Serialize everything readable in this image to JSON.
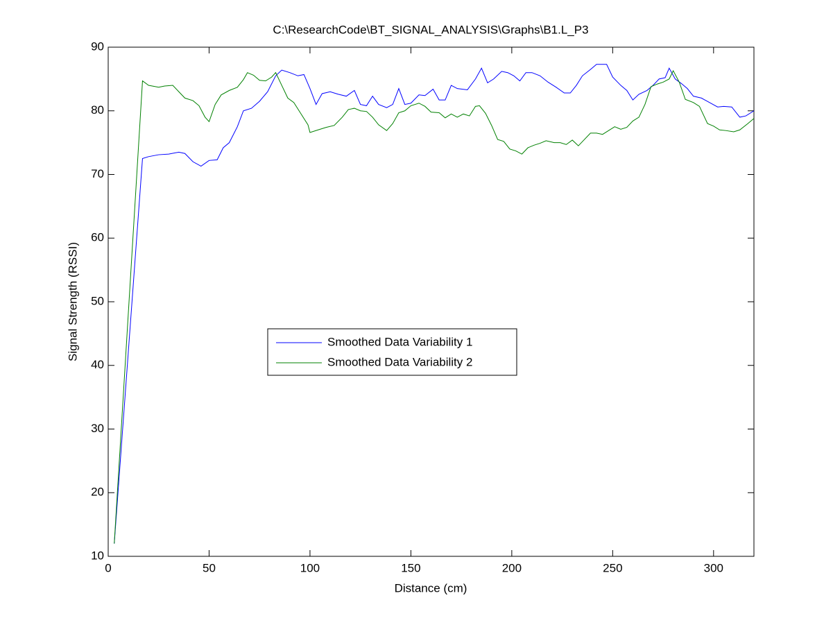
{
  "chart_data": {
    "type": "line",
    "title": "C:\\ResearchCode\\BT_SIGNAL_ANALYSIS\\Graphs\\B1.L_P3",
    "x_label": "Distance (cm)",
    "y_label": "Signal Strength (RSSI)",
    "xlim": [
      0,
      320
    ],
    "xticks": [
      0,
      50,
      100,
      150,
      200,
      250,
      300
    ],
    "ylim": [
      10,
      90
    ],
    "yticks": [
      10,
      20,
      30,
      40,
      50,
      60,
      70,
      80,
      90
    ],
    "grid": false,
    "legend_position": "center-left",
    "series": [
      {
        "name": "Smoothed Data Variability 1",
        "color": "#0000ff",
        "x": [
          3,
          17,
          20,
          25,
          30,
          35,
          38,
          42,
          46,
          50,
          54,
          57,
          60,
          64,
          67,
          71,
          75,
          79,
          83,
          86,
          90,
          94,
          97,
          100,
          103,
          106,
          110,
          114,
          118,
          122,
          125,
          128,
          131,
          134,
          138,
          141,
          144,
          147,
          150,
          154,
          157,
          161,
          164,
          167,
          170,
          173,
          178,
          182,
          185,
          188,
          191,
          195,
          198,
          201,
          204,
          207,
          210,
          214,
          218,
          222,
          226,
          229,
          232,
          235,
          239,
          242,
          247,
          250,
          254,
          257,
          260,
          263,
          267,
          270,
          273,
          276,
          278,
          281,
          284,
          287,
          290,
          294,
          298,
          302,
          305,
          309,
          313,
          316,
          320
        ],
        "values": [
          12,
          72.5,
          72.8,
          73.1,
          73.2,
          73.5,
          73.3,
          72,
          71.3,
          72.2,
          72.3,
          74.2,
          75,
          77.5,
          80,
          80.4,
          81.5,
          83,
          85.5,
          86.4,
          86,
          85.5,
          85.7,
          83.5,
          81,
          82.7,
          83,
          82.6,
          82.3,
          83.2,
          81,
          80.8,
          82.3,
          81,
          80.5,
          81,
          83.5,
          81,
          81.2,
          82.5,
          82.4,
          83.4,
          81.7,
          81.7,
          84,
          83.5,
          83.3,
          85,
          86.7,
          84.4,
          85,
          86.2,
          86,
          85.5,
          84.7,
          86,
          86,
          85.5,
          84.5,
          83.7,
          82.8,
          82.8,
          84,
          85.5,
          86.5,
          87.3,
          87.3,
          85.3,
          84,
          83.2,
          81.7,
          82.6,
          83.2,
          84,
          85,
          85.2,
          86.7,
          85,
          84.3,
          83.5,
          82.3,
          82,
          81.3,
          80.6,
          80.7,
          80.6,
          79,
          79.2,
          80
        ]
      },
      {
        "name": "Smoothed Data Variability 2",
        "color": "#008000",
        "x": [
          3,
          17,
          20,
          25,
          28,
          32,
          35,
          38,
          42,
          45,
          48,
          50,
          53,
          56,
          60,
          64,
          67,
          69,
          72,
          75,
          78,
          81,
          83,
          86,
          89,
          92,
          95,
          99,
          100,
          104,
          108,
          112,
          116,
          119,
          122,
          125,
          128,
          131,
          134,
          138,
          141,
          144,
          147,
          150,
          154,
          157,
          160,
          164,
          167,
          170,
          173,
          176,
          179,
          182,
          184,
          187,
          190,
          193,
          196,
          199,
          202,
          205,
          208,
          211,
          214,
          217,
          221,
          224,
          227,
          230,
          233,
          236,
          239,
          242,
          245,
          248,
          251,
          254,
          257,
          260,
          263,
          266,
          269,
          272,
          275,
          278,
          280,
          283,
          286,
          290,
          293,
          297,
          300,
          303,
          306,
          310,
          313,
          317,
          320
        ],
        "values": [
          12,
          84.7,
          84,
          83.7,
          83.9,
          84,
          83,
          82,
          81.6,
          80.8,
          79,
          78.3,
          81,
          82.5,
          83.2,
          83.7,
          84.9,
          86,
          85.6,
          84.8,
          84.7,
          85.3,
          86,
          84,
          82,
          81.3,
          79.8,
          77.8,
          76.6,
          77,
          77.4,
          77.7,
          79,
          80.2,
          80.4,
          80,
          79.9,
          79,
          77.8,
          76.9,
          78,
          79.7,
          80,
          80.8,
          81.2,
          80.7,
          79.8,
          79.7,
          78.9,
          79.5,
          79,
          79.5,
          79.2,
          80.7,
          80.8,
          79.6,
          77.7,
          75.5,
          75.2,
          74,
          73.7,
          73.2,
          74.2,
          74.6,
          74.9,
          75.3,
          75,
          75,
          74.7,
          75.4,
          74.5,
          75.5,
          76.5,
          76.5,
          76.3,
          76.9,
          77.5,
          77.1,
          77.4,
          78.4,
          79,
          81,
          83.8,
          84.2,
          84.5,
          85,
          86.3,
          84.5,
          81.8,
          81.3,
          80.7,
          78,
          77.6,
          77,
          76.9,
          76.7,
          77,
          78,
          78.8
        ]
      }
    ]
  }
}
